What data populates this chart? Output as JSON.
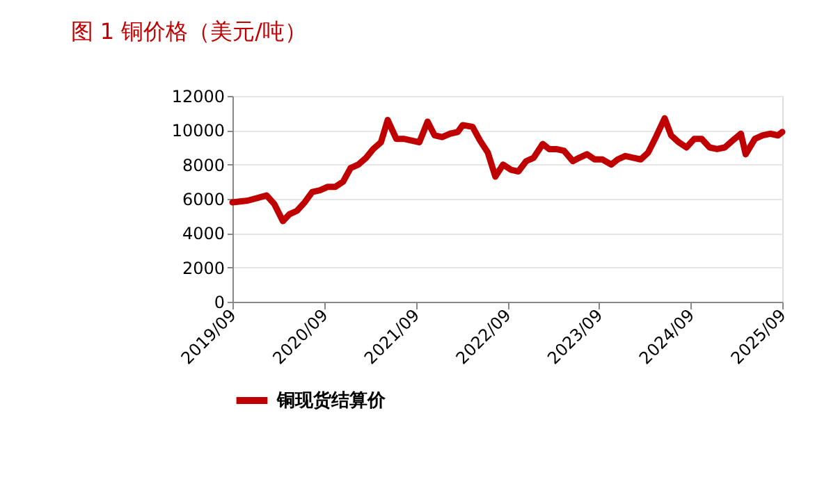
{
  "chart_data": {
    "type": "line",
    "title": "图 1    铜价格（美元/吨）",
    "x": [
      "2019-09-01",
      "2019-11-01",
      "2020-01-15",
      "2020-02-15",
      "2020-03-20",
      "2020-04-15",
      "2020-05-15",
      "2020-06-15",
      "2020-07-15",
      "2020-08-15",
      "2020-09-15",
      "2020-10-15",
      "2020-11-15",
      "2020-12-15",
      "2021-01-15",
      "2021-02-15",
      "2021-03-15",
      "2021-04-15",
      "2021-05-12",
      "2021-06-15",
      "2021-07-15",
      "2021-08-15",
      "2021-09-15",
      "2021-10-18",
      "2021-11-15",
      "2021-12-15",
      "2022-01-15",
      "2022-02-15",
      "2022-03-07",
      "2022-04-15",
      "2022-05-15",
      "2022-06-15",
      "2022-07-15",
      "2022-08-15",
      "2022-09-15",
      "2022-10-15",
      "2022-11-15",
      "2022-12-15",
      "2023-01-20",
      "2023-02-15",
      "2023-03-15",
      "2023-04-15",
      "2023-05-20",
      "2023-06-15",
      "2023-07-15",
      "2023-08-15",
      "2023-09-15",
      "2023-10-20",
      "2023-11-15",
      "2023-12-15",
      "2024-01-15",
      "2024-02-15",
      "2024-03-15",
      "2024-04-15",
      "2024-05-20",
      "2024-06-15",
      "2024-07-15",
      "2024-08-15",
      "2024-09-15",
      "2024-10-15",
      "2024-11-15",
      "2024-12-15",
      "2025-01-15",
      "2025-02-15",
      "2025-03-20",
      "2025-04-08",
      "2025-05-15",
      "2025-06-15",
      "2025-07-15",
      "2025-08-15",
      "2025-09-01"
    ],
    "series": [
      {
        "name": "铜现货结算价",
        "color": "#c00000",
        "values": [
          5800,
          5900,
          6200,
          5700,
          4700,
          5100,
          5300,
          5800,
          6400,
          6500,
          6700,
          6700,
          7000,
          7800,
          8000,
          8400,
          8900,
          9300,
          10600,
          9500,
          9500,
          9400,
          9300,
          10500,
          9700,
          9600,
          9800,
          9900,
          10300,
          10200,
          9400,
          8700,
          7300,
          8000,
          7700,
          7600,
          8200,
          8400,
          9200,
          8900,
          8900,
          8800,
          8200,
          8400,
          8600,
          8300,
          8300,
          8000,
          8300,
          8500,
          8400,
          8300,
          8700,
          9600,
          10700,
          9700,
          9300,
          9000,
          9500,
          9500,
          9000,
          8900,
          9000,
          9400,
          9800,
          8600,
          9500,
          9700,
          9800,
          9700,
          9900
        ]
      }
    ],
    "xlim": [
      "2019-09-01",
      "2025-09-01"
    ],
    "xticks": [
      {
        "value": "2019-09-01",
        "label": "2019/09"
      },
      {
        "value": "2020-09-01",
        "label": "2020/09"
      },
      {
        "value": "2021-09-01",
        "label": "2021/09"
      },
      {
        "value": "2022-09-01",
        "label": "2022/09"
      },
      {
        "value": "2023-09-01",
        "label": "2023/09"
      },
      {
        "value": "2024-09-01",
        "label": "2024/09"
      },
      {
        "value": "2025-09-01",
        "label": "2025/09"
      }
    ],
    "ylim": [
      0,
      12000
    ],
    "yticks": [
      0,
      2000,
      4000,
      6000,
      8000,
      10000,
      12000
    ],
    "grid": "y",
    "legend": "bottom",
    "marker": "none",
    "line_style": "solid"
  }
}
